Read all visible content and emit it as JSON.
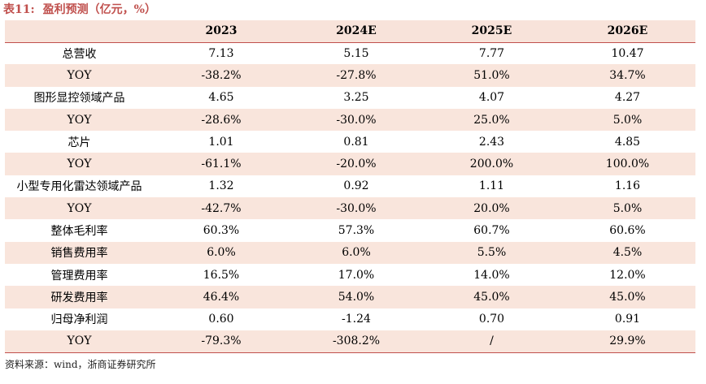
{
  "caption": {
    "number": "表11:",
    "title": "盈利预测（亿元，%）"
  },
  "table": {
    "headers": [
      "",
      "2023",
      "2024E",
      "2025E",
      "2026E"
    ],
    "rows": [
      [
        "总营收",
        "7.13",
        "5.15",
        "7.77",
        "10.47"
      ],
      [
        "YOY",
        "-38.2%",
        "-27.8%",
        "51.0%",
        "34.7%"
      ],
      [
        "图形显控领域产品",
        "4.65",
        "3.25",
        "4.07",
        "4.27"
      ],
      [
        "YOY",
        "-28.6%",
        "-30.0%",
        "25.0%",
        "5.0%"
      ],
      [
        "芯片",
        "1.01",
        "0.81",
        "2.43",
        "4.85"
      ],
      [
        "YOY",
        "-61.1%",
        "-20.0%",
        "200.0%",
        "100.0%"
      ],
      [
        "小型专用化雷达领域产品",
        "1.32",
        "0.92",
        "1.11",
        "1.16"
      ],
      [
        "YOY",
        "-42.7%",
        "-30.0%",
        "20.0%",
        "5.0%"
      ],
      [
        "整体毛利率",
        "60.3%",
        "57.3%",
        "60.7%",
        "60.6%"
      ],
      [
        "销售费用率",
        "6.0%",
        "6.0%",
        "5.5%",
        "4.5%"
      ],
      [
        "管理费用率",
        "16.5%",
        "17.0%",
        "14.0%",
        "12.0%"
      ],
      [
        "研发费用率",
        "46.4%",
        "54.0%",
        "45.0%",
        "45.0%"
      ],
      [
        "归母净利润",
        "0.60",
        "-1.24",
        "0.70",
        "0.91"
      ],
      [
        "YOY",
        "-79.3%",
        "-308.2%",
        "/",
        "29.9%"
      ]
    ]
  },
  "source": "资料来源：wind，浙商证券研究所",
  "colors": {
    "accent": "#c0504d",
    "stripe": "#f9e5dc"
  }
}
